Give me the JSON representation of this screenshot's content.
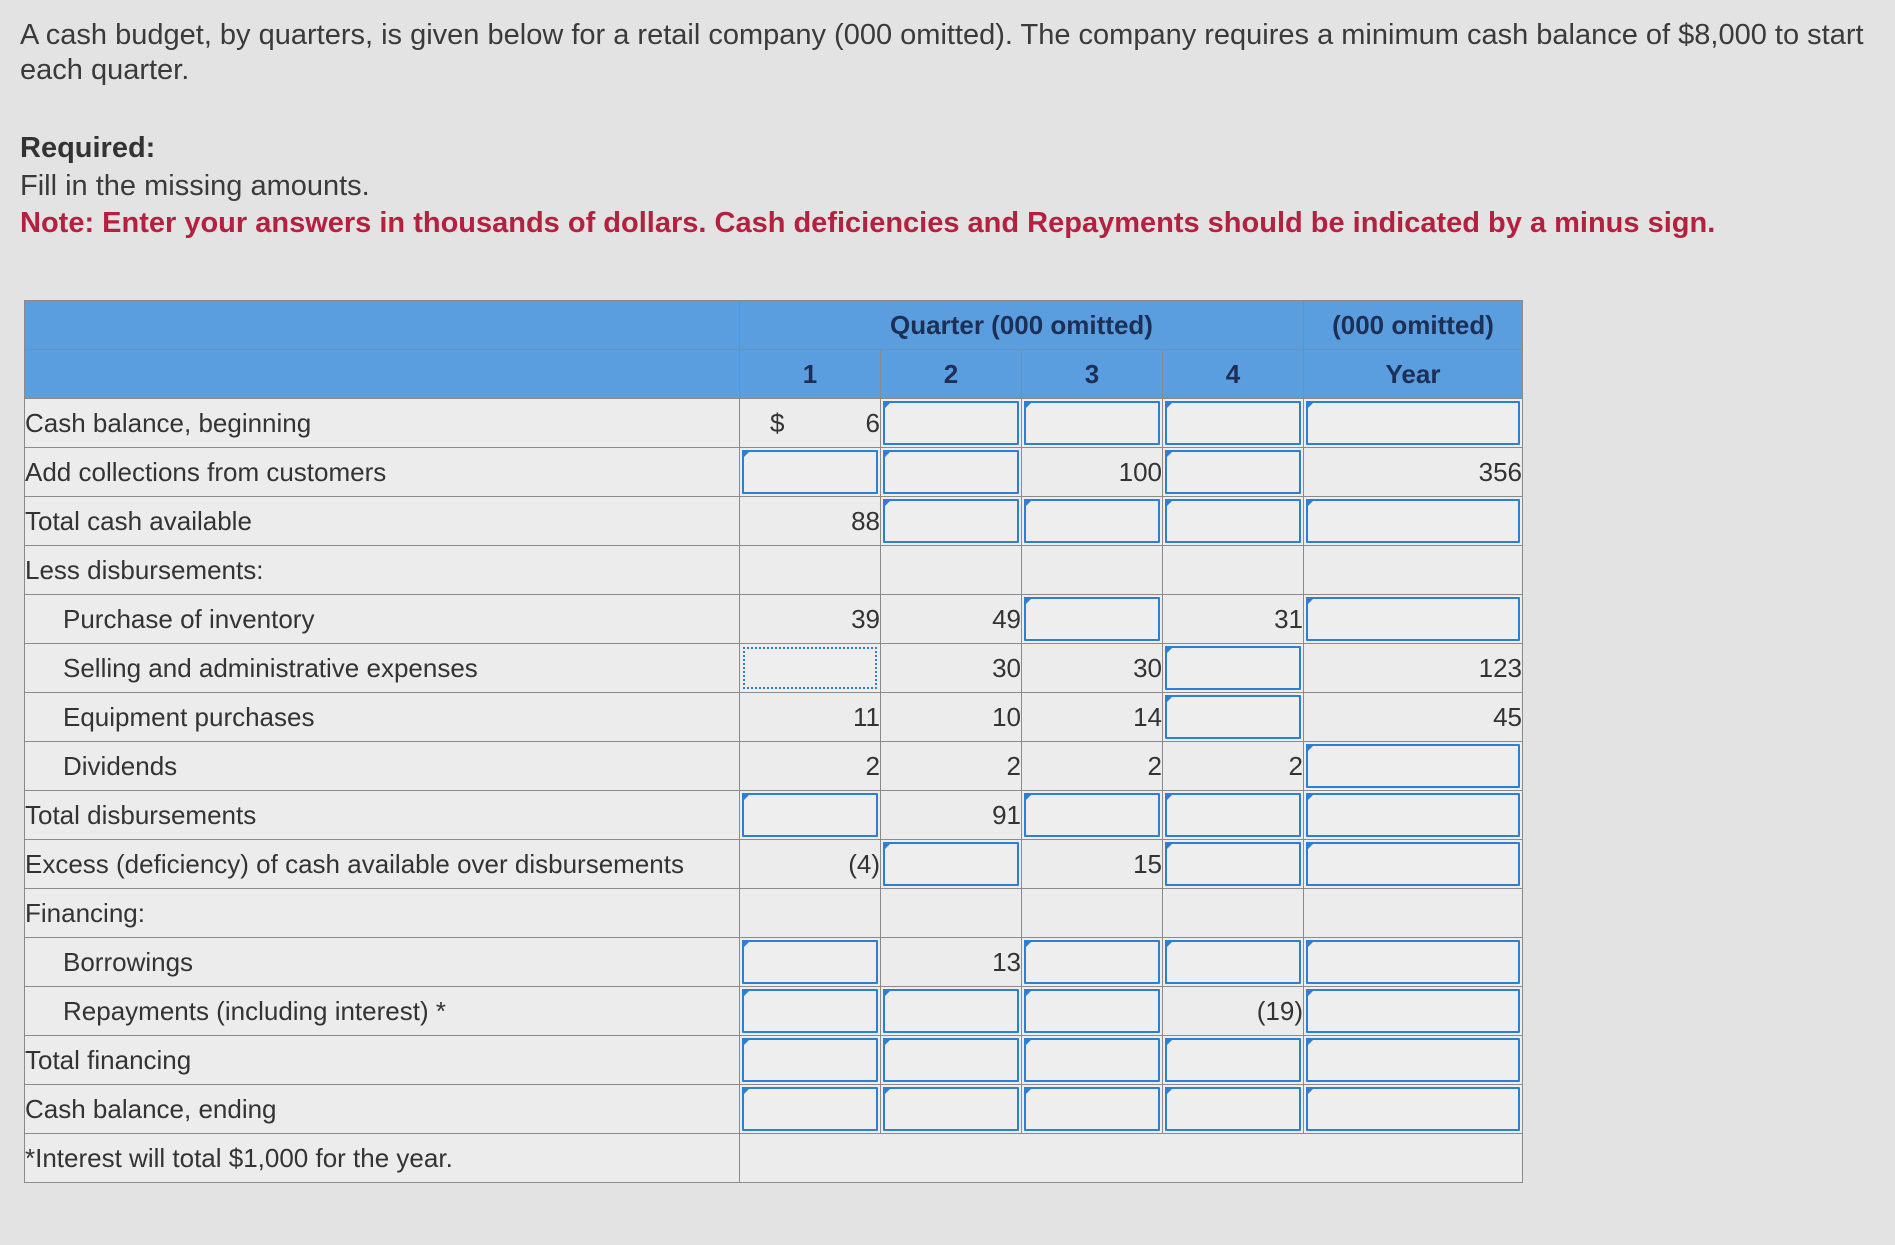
{
  "intro": "A cash budget, by quarters, is given below for a retail company (000 omitted). The company requires a minimum cash balance of $8,000 to start each quarter.",
  "required_heading": "Required:",
  "required_text": "Fill in the missing amounts.",
  "note": "Note: Enter your answers in thousands of dollars. Cash deficiencies and Repayments should be indicated by a minus sign.",
  "table": {
    "header_quarter": "Quarter (000 omitted)",
    "header_year_top": "(000 omitted)",
    "col_labels": [
      "1",
      "2",
      "3",
      "4",
      "Year"
    ],
    "currency_symbol": "$",
    "rows": [
      {
        "label": "Cash balance, beginning",
        "values": [
          "6",
          "",
          "",
          "",
          ""
        ]
      },
      {
        "label": "Add collections from customers",
        "values": [
          "",
          "",
          "100",
          "",
          "356"
        ]
      },
      {
        "label": "Total cash available",
        "values": [
          "88",
          "",
          "",
          "",
          ""
        ]
      },
      {
        "label": "Less disbursements:",
        "values": [
          "",
          "",
          "",
          "",
          ""
        ]
      },
      {
        "label": "Purchase of inventory",
        "values": [
          "39",
          "49",
          "",
          "31",
          ""
        ]
      },
      {
        "label": "Selling and administrative expenses",
        "values": [
          "",
          "30",
          "30",
          "",
          "123"
        ]
      },
      {
        "label": "Equipment purchases",
        "values": [
          "11",
          "10",
          "14",
          "",
          "45"
        ]
      },
      {
        "label": "Dividends",
        "values": [
          "2",
          "2",
          "2",
          "2",
          ""
        ]
      },
      {
        "label": "Total disbursements",
        "values": [
          "",
          "91",
          "",
          "",
          ""
        ]
      },
      {
        "label": "Excess (deficiency) of cash available over disbursements",
        "values": [
          "(4)",
          "",
          "15",
          "",
          ""
        ]
      },
      {
        "label": "Financing:",
        "values": [
          "",
          "",
          "",
          "",
          ""
        ]
      },
      {
        "label": "Borrowings",
        "values": [
          "",
          "13",
          "",
          "",
          ""
        ]
      },
      {
        "label": "Repayments (including interest) *",
        "values": [
          "",
          "",
          "",
          "(19)",
          ""
        ]
      },
      {
        "label": "Total financing",
        "values": [
          "",
          "",
          "",
          "",
          ""
        ]
      },
      {
        "label": "Cash balance, ending",
        "values": [
          "",
          "",
          "",
          "",
          ""
        ]
      }
    ],
    "footnote": "*Interest will total $1,000 for the year."
  }
}
